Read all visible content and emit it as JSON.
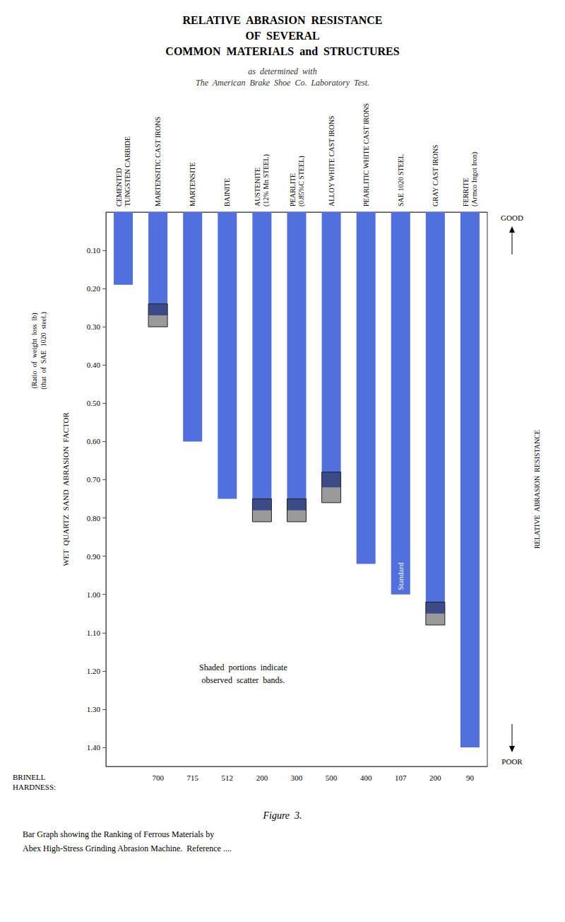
{
  "chart_data": {
    "type": "bar",
    "title": "RELATIVE  ABRASION  RESISTANCE\nOF  SEVERAL\nCOMMON  MATERIALS  and  STRUCTURES",
    "subtitle": "as  determined  with\nThe  American  Brake  Shoe  Co.  Laboratory  Test.",
    "ylabel": "WET  QUARTZ  SAND  ABRASION  FACTOR",
    "ylabel_note": "(Ratio  of  weight  loss  lb)\n(that  of  SAE  1020  steel.)",
    "xlabel": "BRINELL\nHARDNESS:",
    "brinell_hardness": [
      null,
      "700",
      "715",
      "512",
      "200",
      "300",
      "500",
      "400",
      "107",
      "200",
      "90"
    ],
    "categories": [
      "CEMENTED\nTUNGSTEN CARBIDE",
      "MARTENSITIC CAST IRONS",
      "MARTENSITE",
      "BAINITE",
      "AUSTENITE\n(12% Mn STEEL)",
      "PEARLITE\n(0.85%C STEEL)",
      "ALLOY WHITE CAST IRONS",
      "PEARLITIC WHITE CAST IRONS",
      "SAE 1020 STEEL",
      "GRAY CAST IRONS",
      "FERRITE\n(Armco Ingot Iron)"
    ],
    "values": [
      0.19,
      0.27,
      0.6,
      0.75,
      0.78,
      0.78,
      0.72,
      0.92,
      1.0,
      1.05,
      1.4
    ],
    "scatter_low": [
      null,
      0.24,
      null,
      null,
      0.75,
      0.75,
      0.68,
      null,
      null,
      1.02,
      null
    ],
    "scatter_high": [
      null,
      0.3,
      null,
      null,
      0.81,
      0.81,
      0.76,
      null,
      null,
      1.08,
      null
    ],
    "annotations": [
      "Shaded  portions  indicate",
      "observed  scatter  bands."
    ],
    "bar_note": {
      "category": "SAE 1020 STEEL",
      "label": "Standard"
    },
    "scale_labels": {
      "top": "GOOD",
      "middle": "RELATIVE  ABRASION  RESISTANCE",
      "bottom": "POOR"
    },
    "caption": "Figure  3.",
    "notes": [
      "Bar Graph showing the Ranking of Ferrous Materials by",
      "Abex High-Stress Grinding Abrasion Machine.  Reference ...."
    ],
    "ylim": [
      1.45,
      0.0
    ],
    "yticks": [
      {
        "value": 0.1,
        "label": "0.10"
      },
      {
        "value": 0.2,
        "label": "0.20"
      },
      {
        "value": 0.3,
        "label": "0.30"
      },
      {
        "value": 0.4,
        "label": "0.40"
      },
      {
        "value": 0.5,
        "label": "0.50"
      },
      {
        "value": 0.6,
        "label": "0.60"
      },
      {
        "value": 0.7,
        "label": "0.70"
      },
      {
        "value": 0.8,
        "label": "0.80"
      },
      {
        "value": 0.9,
        "label": "0.90"
      },
      {
        "value": 1.0,
        "label": "1.00"
      },
      {
        "value": 1.1,
        "label": "1.10"
      },
      {
        "value": 1.2,
        "label": "1.20"
      },
      {
        "value": 1.3,
        "label": "1.30"
      },
      {
        "value": 1.4,
        "label": "1.40"
      }
    ],
    "grid": false,
    "data_labels": false
  }
}
